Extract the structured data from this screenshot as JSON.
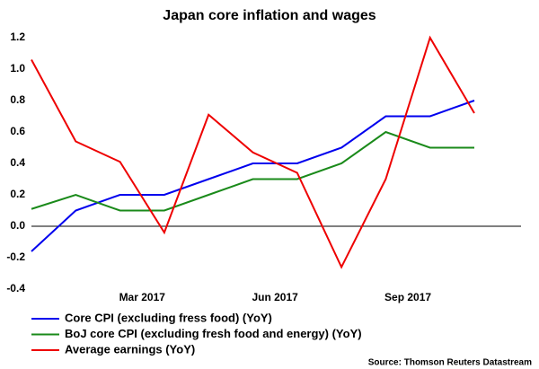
{
  "chart_data": {
    "type": "line",
    "title": "Japan core inflation and wages",
    "categories": [
      null,
      null,
      null,
      "Mar 2017",
      null,
      null,
      "Jun 2017",
      null,
      null,
      "Sep 2017",
      null
    ],
    "series": [
      {
        "name": "Core CPI (excluding fress food) (YoY)",
        "color": "#0000ee",
        "values": [
          -0.16,
          0.1,
          0.2,
          0.2,
          0.3,
          0.4,
          0.4,
          0.5,
          0.7,
          0.7,
          0.8
        ]
      },
      {
        "name": "BoJ core CPI (excluding fresh food and energy) (YoY)",
        "color": "#1a8a1a",
        "values": [
          0.11,
          0.2,
          0.1,
          0.1,
          0.2,
          0.3,
          0.3,
          0.4,
          0.6,
          0.5,
          0.5
        ]
      },
      {
        "name": "Average earnings (YoY)",
        "color": "#ee0000",
        "values": [
          1.06,
          0.54,
          0.41,
          -0.04,
          0.71,
          0.47,
          0.34,
          -0.26,
          0.3,
          1.2,
          0.72
        ]
      }
    ],
    "ylim": [
      -0.4,
      1.2
    ],
    "yticks": [
      -0.4,
      -0.2,
      0.2,
      {
        "value": 0,
        "label": "0.0"
      },
      0.4,
      0.6,
      0.8,
      {
        "value": 1,
        "label": "1.0"
      },
      1.2
    ],
    "legend": "bottom",
    "source": "Source: Thomson Reuters Datastream"
  }
}
